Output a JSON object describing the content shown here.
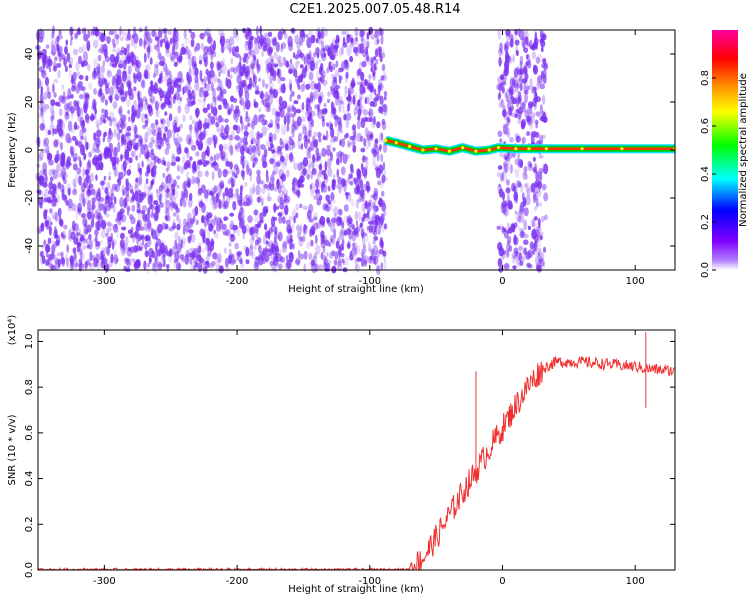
{
  "title": "C2E1.2025.007.05.48.R14",
  "colors": {
    "spectrogram_dots": "#7a2ff0",
    "snr_line": "#f03030",
    "colorbar": [
      "#8000ff",
      "#0000ff",
      "#00ffff",
      "#00ff00",
      "#ffff00",
      "#ff8000",
      "#ff0000",
      "#ff00ff"
    ]
  },
  "chart_data": [
    {
      "type": "heatmap",
      "title": "C2E1.2025.007.05.48.R14",
      "xlabel": "Height of straight line (km)",
      "ylabel": "Frequency (Hz)",
      "xlim": [
        -350,
        130
      ],
      "ylim": [
        -50,
        50
      ],
      "x_ticks": [
        "-300",
        "-200",
        "-100",
        "0",
        "100"
      ],
      "y_ticks": [
        "-40",
        "-20",
        "0",
        "20",
        "40"
      ],
      "colorbar": {
        "label": "Normalized spectral amplitude",
        "range": [
          0,
          1
        ],
        "ticks": [
          "0.0",
          "0.2",
          "0.4",
          "0.6",
          "0.8"
        ]
      },
      "regions": [
        {
          "name": "noise",
          "x": [
            -350,
            -88
          ],
          "y": [
            -50,
            50
          ]
        },
        {
          "name": "noise",
          "x": [
            -3,
            33
          ],
          "y": [
            -50,
            50
          ]
        }
      ],
      "ridge": {
        "x": [
          -88,
          -80,
          -70,
          -60,
          -50,
          -40,
          -30,
          -20,
          -10,
          -3,
          10,
          20,
          33,
          60,
          90,
          130
        ],
        "y": [
          4,
          3,
          1.5,
          0,
          0.5,
          -0.5,
          1,
          -0.5,
          0,
          1,
          0.5,
          0.5,
          0.5,
          0.5,
          0.5,
          0.5
        ]
      }
    },
    {
      "type": "line",
      "xlabel": "Height of straight line (km)",
      "ylabel": "SNR (10 * v/v)",
      "y_scale_label": "(x10⁴)",
      "xlim": [
        -350,
        130
      ],
      "ylim": [
        0,
        1.05
      ],
      "x_ticks": [
        "-300",
        "-200",
        "-100",
        "0",
        "100"
      ],
      "y_ticks": [
        "0.0",
        "0.2",
        "0.4",
        "0.6",
        "0.8",
        "1.0"
      ],
      "series": [
        {
          "x": [
            -350,
            -300,
            -200,
            -100,
            -70,
            -60,
            -50,
            -40,
            -30,
            -20,
            -10,
            0,
            10,
            20,
            30,
            40,
            60,
            80,
            100,
            110,
            130
          ],
          "y": [
            0.0,
            0.0,
            0.0,
            0.0,
            0.0,
            0.05,
            0.14,
            0.24,
            0.34,
            0.43,
            0.53,
            0.62,
            0.72,
            0.81,
            0.88,
            0.91,
            0.91,
            0.9,
            0.89,
            0.88,
            0.87
          ]
        }
      ],
      "annotations": [
        {
          "x": -20,
          "y": 0.87
        },
        {
          "x": 108,
          "y": 1.04
        },
        {
          "x": 108,
          "y": 0.71
        }
      ]
    }
  ]
}
